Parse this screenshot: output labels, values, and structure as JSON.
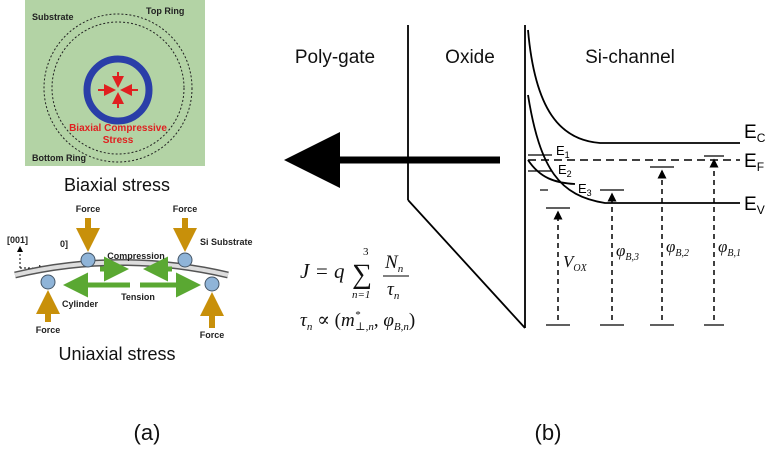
{
  "panel_a": {
    "biaxial": {
      "substrate": "Substrate",
      "top_ring": "Top Ring",
      "stress_line1": "Biaxial Compressive",
      "stress_line2": "Stress",
      "bottom_ring": "Bottom Ring",
      "caption": "Biaxial stress"
    },
    "uniaxial": {
      "axis_1": "[001]",
      "axis_2": "0]",
      "force": [
        "Force",
        "Force",
        "Force",
        "Force"
      ],
      "compression": "Compression",
      "si_substrate": "Si Substrate",
      "cylinder": "Cylinder",
      "tension": "Tension",
      "caption": "Uniaxial stress"
    },
    "label": "(a)"
  },
  "panel_b": {
    "regions": [
      "Poly-gate",
      "Oxide",
      "Si-channel"
    ],
    "bands": {
      "ec": [
        "E",
        "C"
      ],
      "ef": [
        "E",
        "F"
      ],
      "ev": [
        "E",
        "V"
      ]
    },
    "levels": [
      [
        "E",
        "1"
      ],
      [
        "E",
        "2"
      ],
      [
        "E",
        "3"
      ]
    ],
    "vox": [
      "V",
      "OX"
    ],
    "phi": [
      [
        "φ",
        "B,3"
      ],
      [
        "φ",
        "B,2"
      ],
      [
        "φ",
        "B,1"
      ]
    ],
    "formula_j": [
      "J = q",
      "∑",
      "3",
      "n=1",
      "N",
      "n",
      "τ",
      "n"
    ],
    "formula_tau": [
      "τ",
      "n",
      " ∝ (",
      "m",
      "*",
      "⊥,n",
      ", ",
      "φ",
      "B,n",
      ")"
    ],
    "label": "(b)"
  }
}
